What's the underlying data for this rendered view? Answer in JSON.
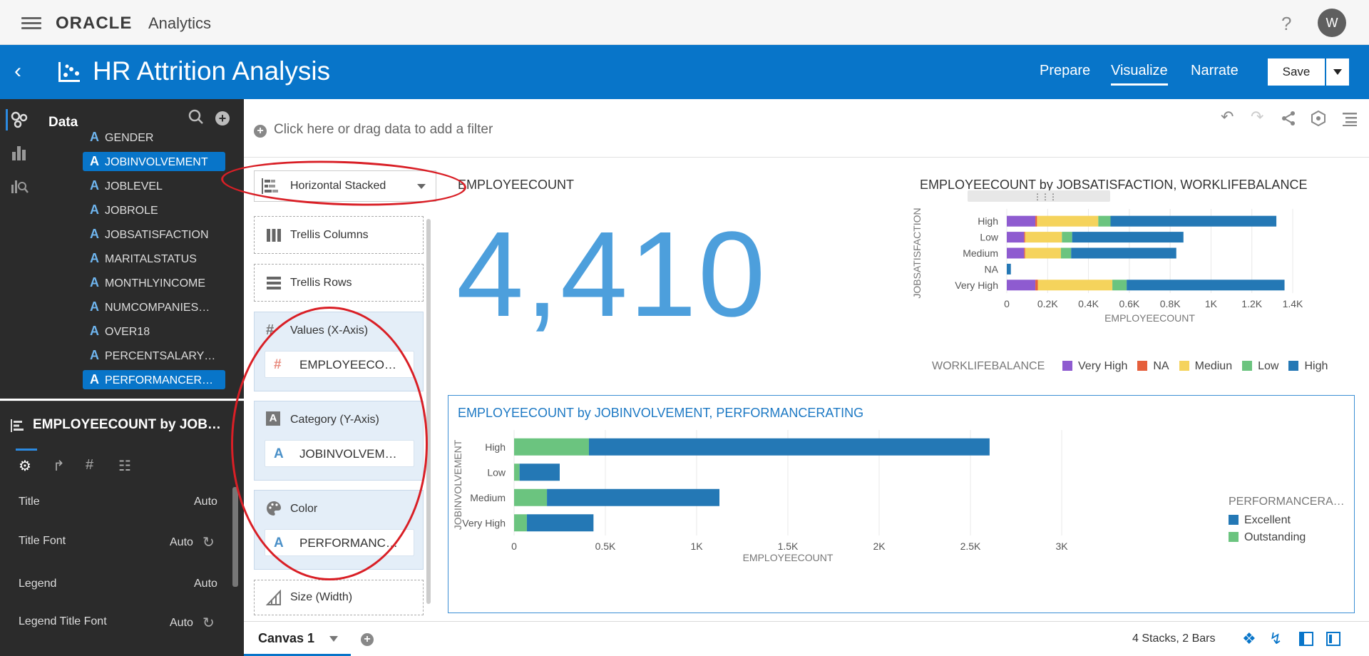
{
  "app": {
    "brand_oracle": "ORACLE",
    "brand_analytics": "Analytics",
    "help": "?",
    "avatar_initial": "W"
  },
  "header": {
    "title": "HR Attrition Analysis",
    "tabs": [
      "Prepare",
      "Visualize",
      "Narrate"
    ],
    "active_tab": "Visualize",
    "save_label": "Save"
  },
  "data_panel": {
    "title": "Data",
    "fields": [
      {
        "type": "A",
        "name": "GENDER",
        "selected": false
      },
      {
        "type": "A",
        "name": "JOBINVOLVEMENT",
        "selected": true
      },
      {
        "type": "A",
        "name": "JOBLEVEL",
        "selected": false
      },
      {
        "type": "A",
        "name": "JOBROLE",
        "selected": false
      },
      {
        "type": "A",
        "name": "JOBSATISFACTION",
        "selected": false
      },
      {
        "type": "A",
        "name": "MARITALSTATUS",
        "selected": false
      },
      {
        "type": "A",
        "name": "MONTHLYINCOME",
        "selected": false
      },
      {
        "type": "A",
        "name": "NUMCOMPANIES…",
        "selected": false
      },
      {
        "type": "A",
        "name": "OVER18",
        "selected": false
      },
      {
        "type": "A",
        "name": "PERCENTSALARY…",
        "selected": false
      },
      {
        "type": "A",
        "name": "PERFORMANCER…",
        "selected": true
      }
    ]
  },
  "properties": {
    "title": "EMPLOYEECOUNT by JOB…",
    "rows": [
      {
        "label": "Title",
        "value": "Auto",
        "refresh": false
      },
      {
        "label": "Title Font",
        "value": "Auto",
        "refresh": true
      },
      {
        "label": "Legend",
        "value": "Auto",
        "refresh": false
      },
      {
        "label": "Legend Title Font",
        "value": "Auto",
        "refresh": true
      }
    ]
  },
  "filter_bar": {
    "placeholder": "Click here or drag data to add a filter"
  },
  "grammar": {
    "viz_type": "Horizontal Stacked",
    "trellis_columns": "Trellis Columns",
    "trellis_rows": "Trellis Rows",
    "values_label": "Values (X-Axis)",
    "values_pill": "EMPLOYEECO…",
    "category_label": "Category (Y-Axis)",
    "category_pill": "JOBINVOLVEM…",
    "color_label": "Color",
    "color_pill": "PERFORMANC…",
    "size_label": "Size (Width)"
  },
  "kpi_tile": {
    "title": "EMPLOYEECOUNT",
    "value": "4,410"
  },
  "chart_top": {
    "title": "EMPLOYEECOUNT by JOBSATISFACTION, WORKLIFEBALANCE",
    "legend_title": "WORKLIFEBALANCE"
  },
  "chart_bottom": {
    "title": "EMPLOYEECOUNT by JOBINVOLVEMENT, PERFORMANCERATING",
    "legend_title": "PERFORMANCERA…"
  },
  "chart_data": [
    {
      "type": "bar",
      "orientation": "horizontal",
      "stacked": true,
      "title": "EMPLOYEECOUNT by JOBSATISFACTION, WORKLIFEBALANCE",
      "xlabel": "EMPLOYEECOUNT",
      "ylabel": "JOBSATISFACTION",
      "categories": [
        "High",
        "Low",
        "Medium",
        "NA",
        "Very High"
      ],
      "xlim": [
        0,
        1400
      ],
      "x_ticks": [
        "0",
        "0.2K",
        "0.4K",
        "0.6K",
        "0.8K",
        "1K",
        "1.2K",
        "1.4K"
      ],
      "legend_title": "WORKLIFEBALANCE",
      "legend_position": "bottom",
      "series": [
        {
          "name": "Very High",
          "color": "#8e5bd0",
          "values": [
            140,
            85,
            85,
            0,
            140
          ]
        },
        {
          "name": "NA",
          "color": "#e55f3c",
          "values": [
            8,
            5,
            5,
            0,
            12
          ]
        },
        {
          "name": "Mediun",
          "color": "#f5d35c",
          "values": [
            300,
            180,
            175,
            0,
            365
          ]
        },
        {
          "name": "Low",
          "color": "#6bc47f",
          "values": [
            60,
            50,
            50,
            0,
            70
          ]
        },
        {
          "name": "High",
          "color": "#2478b5",
          "values": [
            812,
            545,
            515,
            20,
            773
          ]
        }
      ]
    },
    {
      "type": "bar",
      "orientation": "horizontal",
      "stacked": true,
      "title": "EMPLOYEECOUNT by JOBINVOLVEMENT, PERFORMANCERATING",
      "xlabel": "EMPLOYEECOUNT",
      "ylabel": "JOBINVOLVEMENT",
      "categories": [
        "High",
        "Low",
        "Medium",
        "Very High"
      ],
      "xlim": [
        0,
        3000
      ],
      "x_ticks": [
        "0",
        "0.5K",
        "1K",
        "1.5K",
        "2K",
        "2.5K",
        "3K"
      ],
      "legend_title": "PERFORMANCERA…",
      "legend_position": "right",
      "series": [
        {
          "name": "Outstanding",
          "color": "#6bc47f",
          "values": [
            410,
            30,
            180,
            70
          ]
        },
        {
          "name": "Excellent",
          "color": "#2478b5",
          "values": [
            2195,
            220,
            945,
            365
          ]
        }
      ]
    }
  ],
  "bottom_bar": {
    "canvas_tab": "Canvas 1",
    "status": "4 Stacks, 2 Bars"
  }
}
